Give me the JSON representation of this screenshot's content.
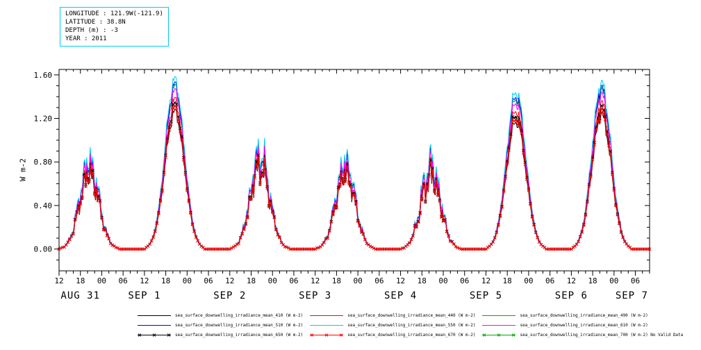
{
  "header": {
    "lines": [
      "LONGITUDE : 121.9W(-121.9)",
      "LATITUDE : 38.8N",
      "DEPTH (m) : -3",
      "YEAR : 2011"
    ],
    "box_border_color": "#00ccee"
  },
  "chart_data": {
    "type": "line",
    "title": "",
    "xlabel": "",
    "ylabel": "W m-2",
    "ylim": [
      0,
      1.6
    ],
    "ylim_draw": [
      -0.2,
      1.65
    ],
    "ytick_labels": [
      "0.00",
      "0.40",
      "0.80",
      "1.20",
      "1.60"
    ],
    "ytick_values": [
      0.0,
      0.4,
      0.8,
      1.2,
      1.6
    ],
    "y_minor_step": 0.1,
    "x_start": "AUG 31 2011 12:00",
    "x_hours_range": [
      0,
      166
    ],
    "xtick_every_hours": 6,
    "x_minor_every_hours": 2,
    "xtick_labels_cycle": [
      "12",
      "18",
      "00",
      "06"
    ],
    "day_labels": [
      "AUG 31",
      "SEP 1",
      "SEP 2",
      "SEP 3",
      "SEP 4",
      "SEP 5",
      "SEP 6",
      "SEP 7"
    ],
    "solar_noon_hour_offset": 8.5,
    "days": [
      {
        "date": "AUG 31",
        "peak_wm2": 0.82,
        "cloudiness": 0.45
      },
      {
        "date": "SEP 1",
        "peak_wm2": 1.55,
        "cloudiness": 0.1
      },
      {
        "date": "SEP 2",
        "peak_wm2": 0.9,
        "cloudiness": 0.45
      },
      {
        "date": "SEP 3",
        "peak_wm2": 0.82,
        "cloudiness": 0.4
      },
      {
        "date": "SEP 4",
        "peak_wm2": 0.8,
        "cloudiness": 0.55
      },
      {
        "date": "SEP 5",
        "peak_wm2": 1.45,
        "cloudiness": 0.1
      },
      {
        "date": "SEP 6",
        "peak_wm2": 1.52,
        "cloudiness": 0.12
      }
    ],
    "series": [
      {
        "label": "sea_surface_downwelling_irradiance_mean_410 (W m-2)",
        "color": "#000000",
        "marker": "none",
        "scale": 0.81,
        "plotted": true
      },
      {
        "label": "sea_surface_downwelling_irradiance_mean_440 (W m-2)",
        "color": "#ff0000",
        "marker": "none",
        "scale": 0.88,
        "plotted": true
      },
      {
        "label": "sea_surface_downwelling_irradiance_mean_490 (W m-2)",
        "color": "#00aa00",
        "marker": "none",
        "scale": 0.955,
        "plotted": true
      },
      {
        "label": "sea_surface_downwelling_irradiance_mean_510 (W m-2)",
        "color": "#0000ff",
        "marker": "none",
        "scale": 0.97,
        "plotted": true
      },
      {
        "label": "sea_surface_downwelling_irradiance_mean_550 (W m-2)",
        "color": "#00ccee",
        "marker": "none",
        "scale": 1.0,
        "plotted": true
      },
      {
        "label": "sea_surface_downwelling_irradiance_mean_610 (W m-2)",
        "color": "#ff00ff",
        "marker": "none",
        "scale": 0.93,
        "plotted": true
      },
      {
        "label": "sea_surface_downwelling_irradiance_mean_650 (W m-2)",
        "color": "#000000",
        "marker": "x",
        "scale": 0.85,
        "plotted": true
      },
      {
        "label": "sea_surface_downwelling_irradiance_mean_670 (W m-2)",
        "color": "#ff0000",
        "marker": "x",
        "scale": 0.83,
        "plotted": true
      },
      {
        "label": "sea_surface_downwelling_irradiance_mean_700 (W m-2) No Valid Data",
        "color": "#00aa00",
        "marker": "x",
        "scale": 0,
        "plotted": false
      }
    ],
    "legend_position": "bottom",
    "grid": false
  }
}
